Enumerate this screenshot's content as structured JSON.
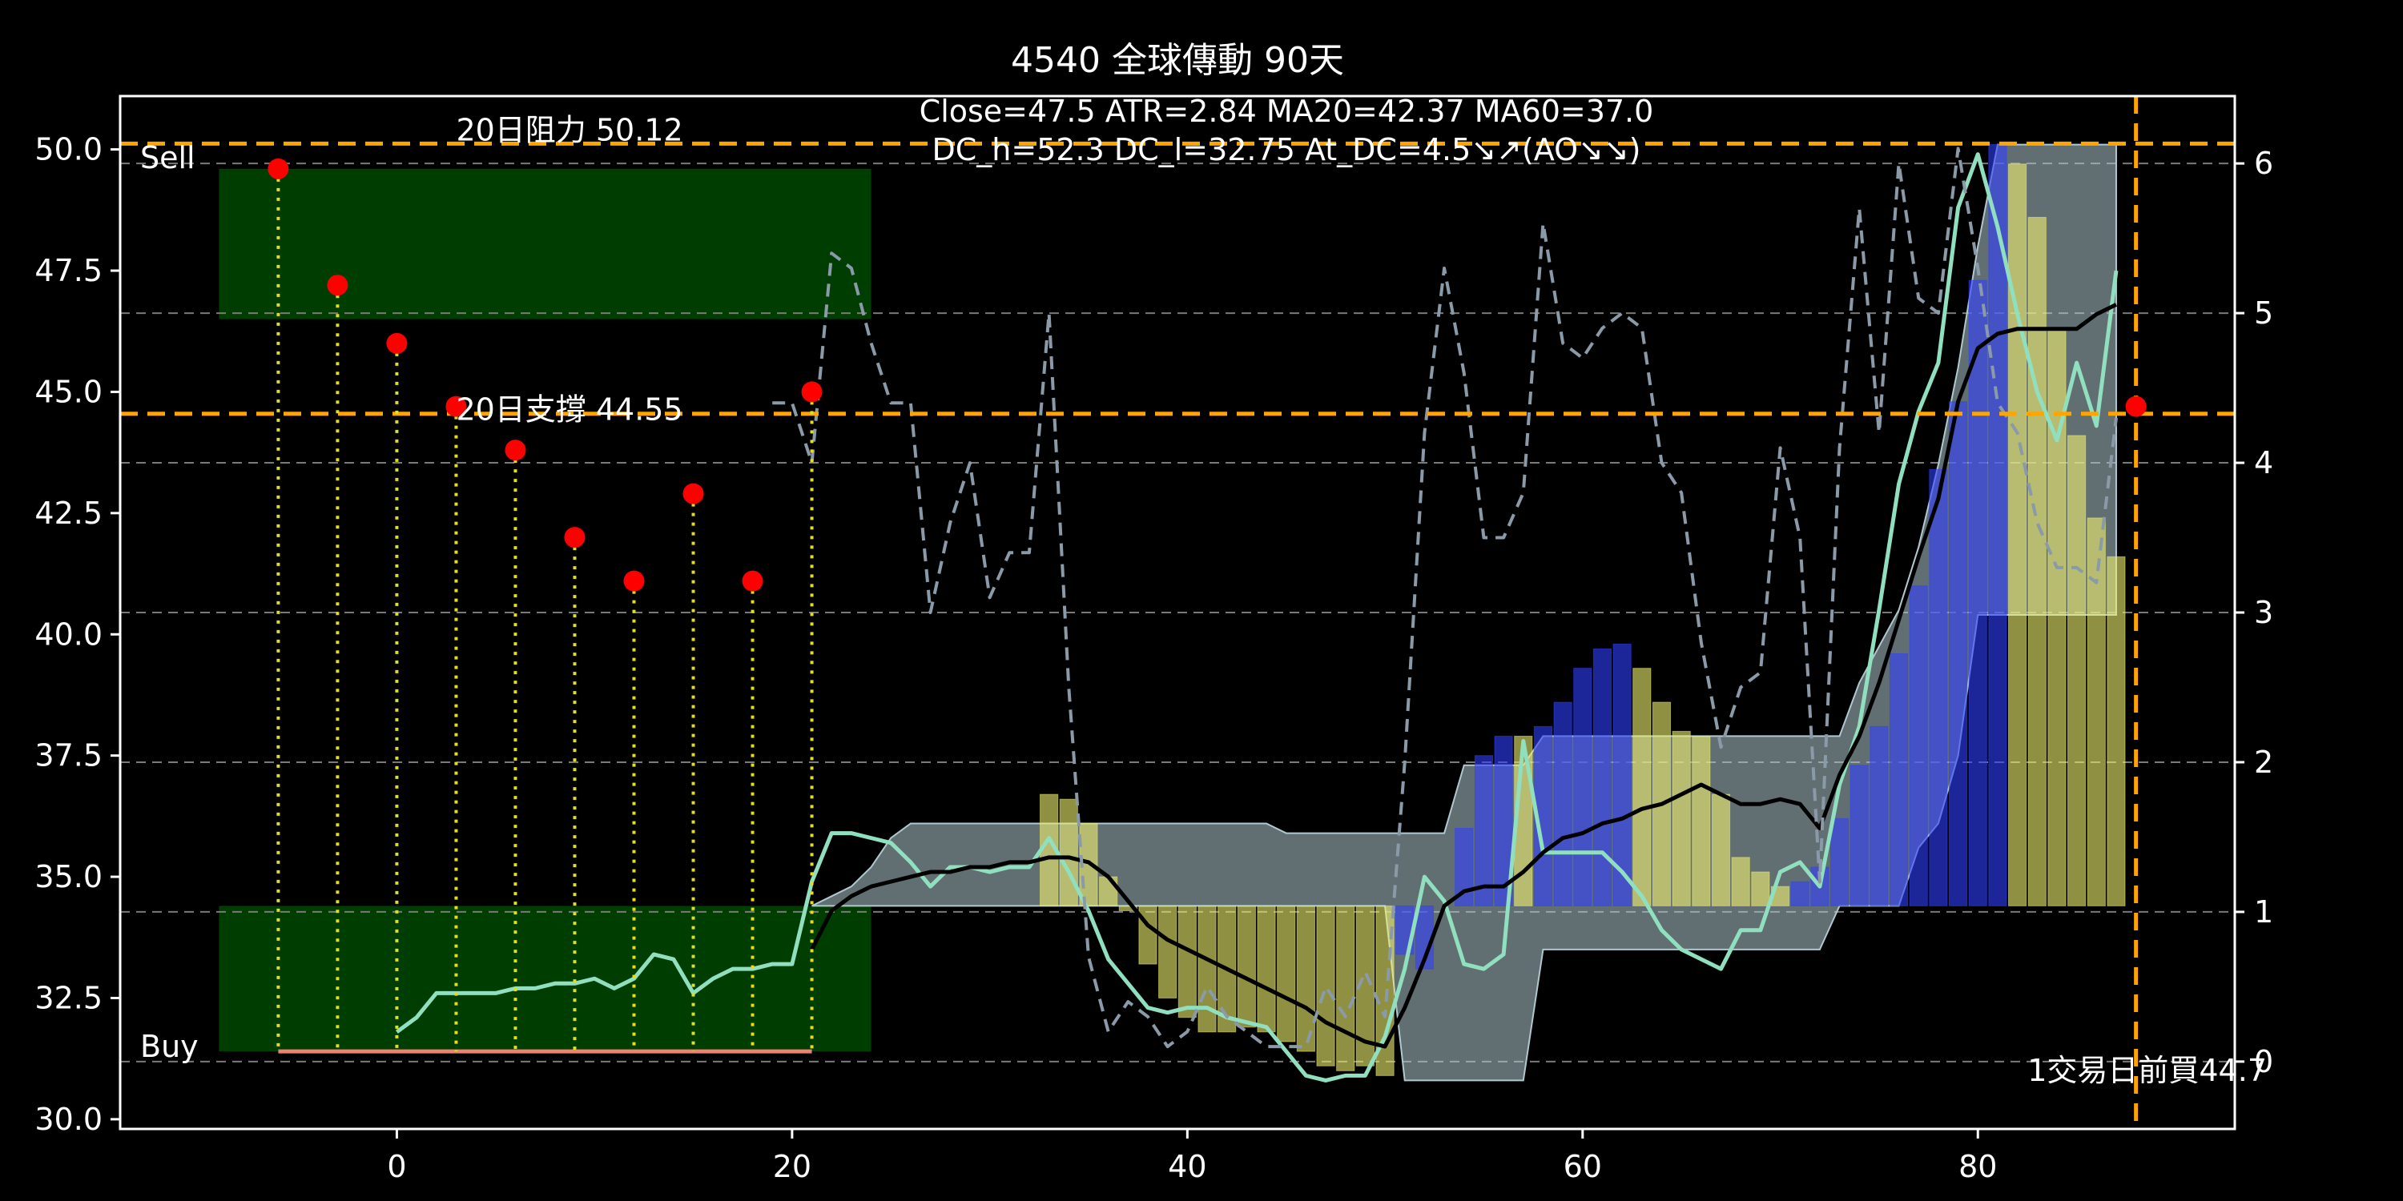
{
  "chart_data": {
    "type": "line",
    "title": "4540 全球傳動 90天",
    "info_line1": "Close=47.5 ATR=2.84 MA20=42.37 MA60=37.0",
    "info_line2": "DC_h=52.3 DC_l=32.75 At_DC=4.5↘↗(AO↘↘)",
    "xlim": [
      -14,
      93
    ],
    "ylim_left": [
      29.8,
      51.1
    ],
    "ylim_right": [
      -0.45,
      6.45
    ],
    "x_ticks": [
      0,
      20,
      40,
      60,
      80
    ],
    "y_ticks_left": [
      30.0,
      32.5,
      35.0,
      37.5,
      40.0,
      42.5,
      45.0,
      47.5,
      50.0
    ],
    "y_tick_labels_left": [
      "30.0",
      "32.5",
      "35.0",
      "37.5",
      "40.0",
      "42.5",
      "45.0",
      "47.5",
      "50.0"
    ],
    "y_ticks_right": [
      0,
      1,
      2,
      3,
      4,
      5,
      6
    ],
    "grid_right_levels": [
      0,
      1,
      2,
      3,
      4,
      5,
      6
    ],
    "resistance": {
      "value": 50.12,
      "label": "20日阻力 50.12",
      "label_x": 3,
      "color": "#ffa500"
    },
    "support": {
      "value": 44.55,
      "label": "20日支撐 44.55",
      "label_x": 3,
      "color": "#ffa500"
    },
    "vline_x": 88,
    "sell_label": "Sell",
    "buy_label": "Buy",
    "bottom_note": "1交易日前買44.7",
    "sell_zone": {
      "x": [
        -9,
        24
      ],
      "y": [
        46.5,
        49.6
      ],
      "color": "#003d00"
    },
    "buy_zone": {
      "x": [
        -9,
        24
      ],
      "y": [
        31.4,
        34.4
      ],
      "color": "#003d00"
    },
    "buy_line": {
      "x": [
        -6,
        21
      ],
      "y": 31.4,
      "color": "#f08070"
    },
    "signal_points": {
      "x": [
        -6,
        -3,
        0,
        3,
        6,
        9,
        12,
        15,
        18,
        21
      ],
      "y": [
        49.6,
        47.2,
        46.0,
        44.7,
        43.8,
        42.0,
        41.1,
        42.9,
        41.1,
        45.0
      ],
      "color": "#ff0000"
    },
    "last_point": {
      "x": 88,
      "y": 44.7
    },
    "channel_band": {
      "x": [
        21,
        22,
        23,
        24,
        25,
        26,
        35,
        36,
        44,
        45,
        50,
        51,
        53,
        54,
        56,
        57,
        58,
        72,
        73,
        74,
        76,
        77,
        78,
        79,
        80,
        81,
        82,
        85,
        86,
        87
      ],
      "upper": [
        34.4,
        34.6,
        34.8,
        35.2,
        35.8,
        36.1,
        36.1,
        36.1,
        36.1,
        35.9,
        35.9,
        35.9,
        35.9,
        37.3,
        37.3,
        37.3,
        37.9,
        37.9,
        37.9,
        39.0,
        40.5,
        41.8,
        43.5,
        45.5,
        48.0,
        50.1,
        50.1,
        50.1,
        50.1,
        50.1
      ],
      "lower": [
        34.4,
        34.4,
        34.4,
        34.4,
        34.4,
        34.4,
        34.4,
        34.4,
        34.4,
        34.4,
        34.4,
        30.8,
        30.8,
        30.8,
        30.8,
        30.8,
        33.5,
        33.5,
        34.4,
        34.4,
        34.4,
        35.6,
        36.1,
        37.5,
        40.4,
        40.4,
        40.4,
        40.4,
        40.4,
        40.4
      ],
      "color": "#b0c8d0"
    },
    "ao_bars": {
      "x": [
        33,
        34,
        35,
        36,
        37,
        38,
        39,
        40,
        41,
        42,
        43,
        44,
        45,
        46,
        47,
        48,
        49,
        50,
        51,
        52,
        53,
        54,
        55,
        56,
        57,
        58,
        59,
        60,
        61,
        62,
        63,
        64,
        65,
        66,
        67,
        68,
        69,
        70,
        71,
        72,
        73,
        74,
        75,
        76,
        77,
        78,
        79,
        80,
        81,
        82,
        83,
        84,
        85,
        86,
        87
      ],
      "y": [
        36.7,
        36.6,
        36.1,
        35.0,
        34.3,
        33.2,
        32.5,
        32.1,
        31.8,
        31.8,
        31.9,
        31.8,
        31.6,
        31.4,
        31.1,
        31.0,
        31.1,
        30.9,
        33.4,
        33.1,
        34.4,
        36.0,
        37.5,
        37.9,
        37.9,
        38.1,
        38.6,
        39.3,
        39.7,
        39.8,
        39.3,
        38.6,
        38.0,
        37.9,
        36.7,
        35.4,
        35.1,
        34.8,
        34.9,
        35.2,
        36.2,
        37.3,
        38.1,
        39.6,
        41.0,
        43.4,
        44.8,
        47.3,
        50.1,
        49.7,
        48.6,
        46.3,
        44.1,
        42.4,
        41.6
      ],
      "colors": [
        "#f0f070",
        "#f0f070",
        "#f0f070",
        "#f0f070",
        "#f0f070",
        "#f0f070",
        "#f0f070",
        "#f0f070",
        "#f0f070",
        "#f0f070",
        "#f0f070",
        "#f0f070",
        "#f0f070",
        "#f0f070",
        "#f0f070",
        "#f0f070",
        "#f0f070",
        "#f0f070",
        "#3040ff",
        "#3040ff",
        "#3040ff",
        "#3040ff",
        "#3040ff",
        "#3040ff",
        "#f0f070",
        "#3040ff",
        "#3040ff",
        "#3040ff",
        "#3040ff",
        "#3040ff",
        "#f0f070",
        "#f0f070",
        "#f0f070",
        "#f0f070",
        "#f0f070",
        "#f0f070",
        "#f0f070",
        "#f0f070",
        "#3040ff",
        "#3040ff",
        "#3040ff",
        "#3040ff",
        "#3040ff",
        "#3040ff",
        "#3040ff",
        "#3040ff",
        "#3040ff",
        "#3040ff",
        "#3040ff",
        "#f0f070",
        "#f0f070",
        "#f0f070",
        "#f0f070",
        "#f0f070",
        "#f0f070"
      ]
    },
    "series": [
      {
        "name": "",
        "axis": "left",
        "style": "solid",
        "color": "#90e0c0",
        "x": [
          0,
          1,
          2,
          3,
          4,
          5,
          6,
          7,
          8,
          9,
          10,
          11,
          12,
          13,
          14,
          15,
          16,
          17,
          18,
          19,
          20,
          21,
          22,
          23,
          24,
          25,
          26,
          27,
          28,
          29,
          30,
          31,
          32,
          33,
          34,
          35,
          36,
          37,
          38,
          39,
          40,
          41,
          42,
          43,
          44,
          45,
          46,
          47,
          48,
          49,
          50,
          51,
          52,
          53,
          54,
          55,
          56,
          57,
          58,
          59,
          60,
          61,
          62,
          63,
          64,
          65,
          66,
          67,
          68,
          69,
          70,
          71,
          72,
          73,
          74,
          75,
          76,
          77,
          78,
          79,
          80,
          81,
          82,
          83,
          84,
          85,
          86,
          87
        ],
        "y": [
          31.8,
          32.1,
          32.6,
          32.6,
          32.6,
          32.6,
          32.7,
          32.7,
          32.8,
          32.8,
          32.9,
          32.7,
          32.9,
          33.4,
          33.3,
          32.6,
          32.9,
          33.1,
          33.1,
          33.2,
          33.2,
          34.9,
          35.9,
          35.9,
          35.8,
          35.7,
          35.3,
          34.8,
          35.2,
          35.2,
          35.1,
          35.2,
          35.2,
          35.8,
          35.1,
          34.3,
          33.3,
          32.8,
          32.3,
          32.2,
          32.3,
          32.3,
          32.1,
          32.0,
          31.9,
          31.4,
          30.9,
          30.8,
          30.9,
          30.9,
          31.7,
          33.1,
          35.0,
          34.5,
          33.2,
          33.1,
          33.4,
          37.8,
          35.5,
          35.5,
          35.5,
          35.5,
          35.1,
          34.6,
          33.9,
          33.5,
          33.3,
          33.1,
          33.9,
          33.9,
          35.1,
          35.3,
          34.8,
          36.9,
          38.1,
          40.5,
          43.1,
          44.6,
          45.6,
          48.8,
          49.9,
          48.4,
          46.6,
          45.0,
          44.0,
          45.6,
          44.3,
          47.5
        ]
      },
      {
        "name": "",
        "axis": "left",
        "style": "solid",
        "color": "#000000",
        "x": [
          21,
          22,
          23,
          24,
          25,
          26,
          27,
          28,
          29,
          30,
          31,
          32,
          33,
          34,
          35,
          36,
          37,
          38,
          39,
          40,
          41,
          42,
          43,
          44,
          45,
          46,
          47,
          48,
          49,
          50,
          51,
          52,
          53,
          54,
          55,
          56,
          57,
          58,
          59,
          60,
          61,
          62,
          63,
          64,
          65,
          66,
          67,
          68,
          69,
          70,
          71,
          72,
          73,
          74,
          75,
          76,
          77,
          78,
          79,
          80,
          81,
          82,
          83,
          84,
          85,
          86,
          87
        ],
        "y": [
          33.5,
          34.3,
          34.6,
          34.8,
          34.9,
          35.0,
          35.1,
          35.1,
          35.2,
          35.2,
          35.3,
          35.3,
          35.4,
          35.4,
          35.3,
          35.0,
          34.5,
          34.0,
          33.7,
          33.5,
          33.3,
          33.1,
          32.9,
          32.7,
          32.5,
          32.3,
          32.0,
          31.8,
          31.6,
          31.5,
          32.3,
          33.3,
          34.4,
          34.7,
          34.8,
          34.8,
          35.1,
          35.5,
          35.8,
          35.9,
          36.1,
          36.2,
          36.4,
          36.5,
          36.7,
          36.9,
          36.7,
          36.5,
          36.5,
          36.6,
          36.5,
          36.0,
          37.1,
          37.9,
          39.0,
          40.3,
          41.6,
          42.8,
          44.8,
          45.9,
          46.2,
          46.3,
          46.3,
          46.3,
          46.3,
          46.6,
          46.8
        ]
      },
      {
        "name": "",
        "axis": "right",
        "style": "dashed",
        "color": "#8a9aa8",
        "x": [
          19,
          20,
          21,
          22,
          23,
          24,
          25,
          26,
          27,
          28,
          29,
          30,
          31,
          32,
          33,
          34,
          35,
          36,
          37,
          38,
          39,
          40,
          41,
          42,
          43,
          44,
          45,
          46,
          47,
          48,
          49,
          50,
          51,
          52,
          53,
          54,
          55,
          56,
          57,
          58,
          59,
          60,
          61,
          62,
          63,
          64,
          65,
          66,
          67,
          68,
          69,
          70,
          71,
          72,
          73,
          74,
          75,
          76,
          77,
          78,
          79,
          80,
          81,
          82,
          83,
          84,
          85,
          86,
          87
        ],
        "y": [
          4.4,
          4.4,
          4.0,
          5.4,
          5.3,
          4.8,
          4.4,
          4.4,
          3.0,
          3.6,
          4.0,
          3.1,
          3.4,
          3.4,
          5.0,
          2.5,
          0.7,
          0.2,
          0.4,
          0.3,
          0.1,
          0.2,
          0.5,
          0.3,
          0.2,
          0.1,
          0.1,
          0.1,
          0.5,
          0.3,
          0.6,
          0.3,
          2.0,
          4.2,
          5.3,
          4.6,
          3.5,
          3.5,
          3.8,
          5.6,
          4.8,
          4.7,
          4.9,
          5.0,
          4.9,
          4.0,
          3.8,
          2.8,
          2.1,
          2.5,
          2.6,
          4.1,
          3.5,
          1.2,
          4.1,
          5.7,
          4.2,
          6.0,
          5.1,
          5.0,
          6.1,
          5.3,
          4.4,
          4.2,
          3.6,
          3.3,
          3.3,
          3.2,
          4.3
        ]
      }
    ]
  }
}
